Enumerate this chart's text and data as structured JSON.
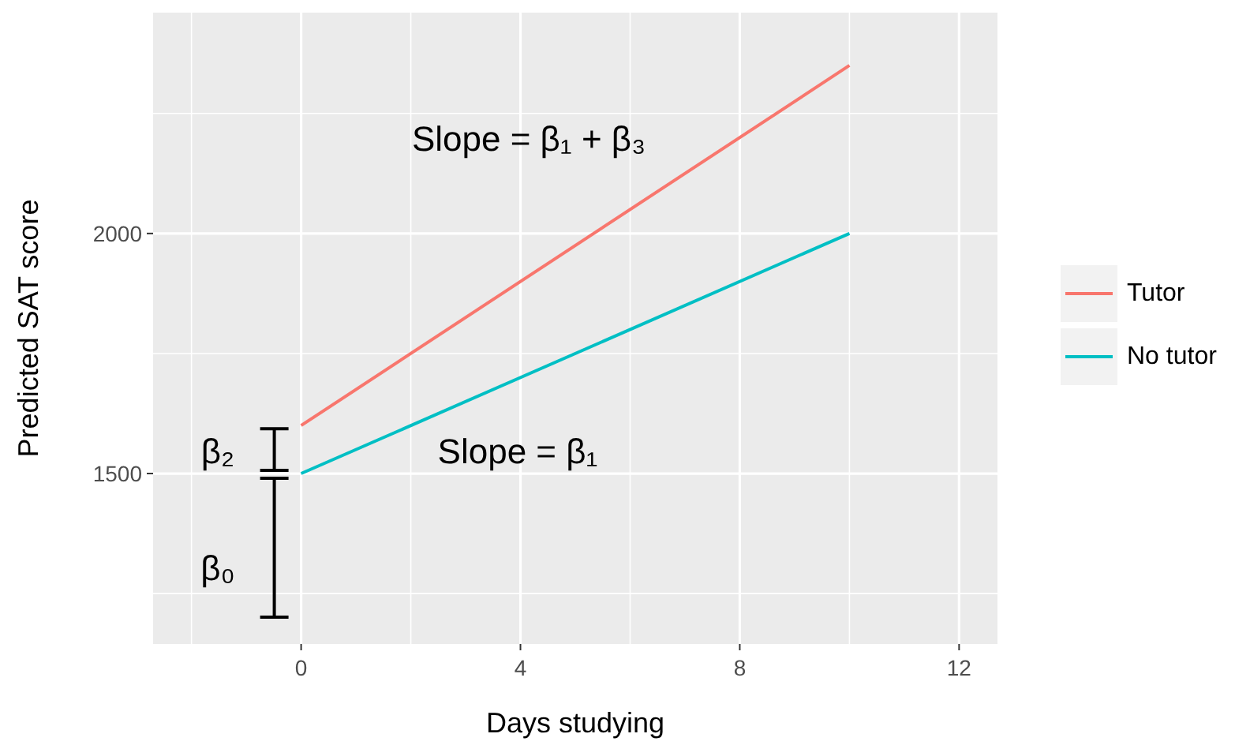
{
  "chart_data": {
    "type": "line",
    "xlabel": "Days studying",
    "ylabel": "Predicted SAT score",
    "x": [
      0,
      10
    ],
    "xlim": [
      -2.7,
      12.7
    ],
    "xticks": [
      0,
      4,
      8,
      12
    ],
    "ylim": [
      1145,
      2460
    ],
    "yticks": [
      1500,
      2000
    ],
    "grid": true,
    "legend": "right",
    "line_style": "solid",
    "marker": "none",
    "series": [
      {
        "name": "Tutor",
        "color": "#f8766d",
        "values": [
          1600,
          2350
        ]
      },
      {
        "name": "No tutor",
        "color": "#00bfc4",
        "values": [
          1500,
          2000
        ]
      }
    ],
    "annotations": [
      "Slope = β₁ + β₃",
      "Slope =  β₁",
      "β₂",
      "β₀"
    ]
  }
}
